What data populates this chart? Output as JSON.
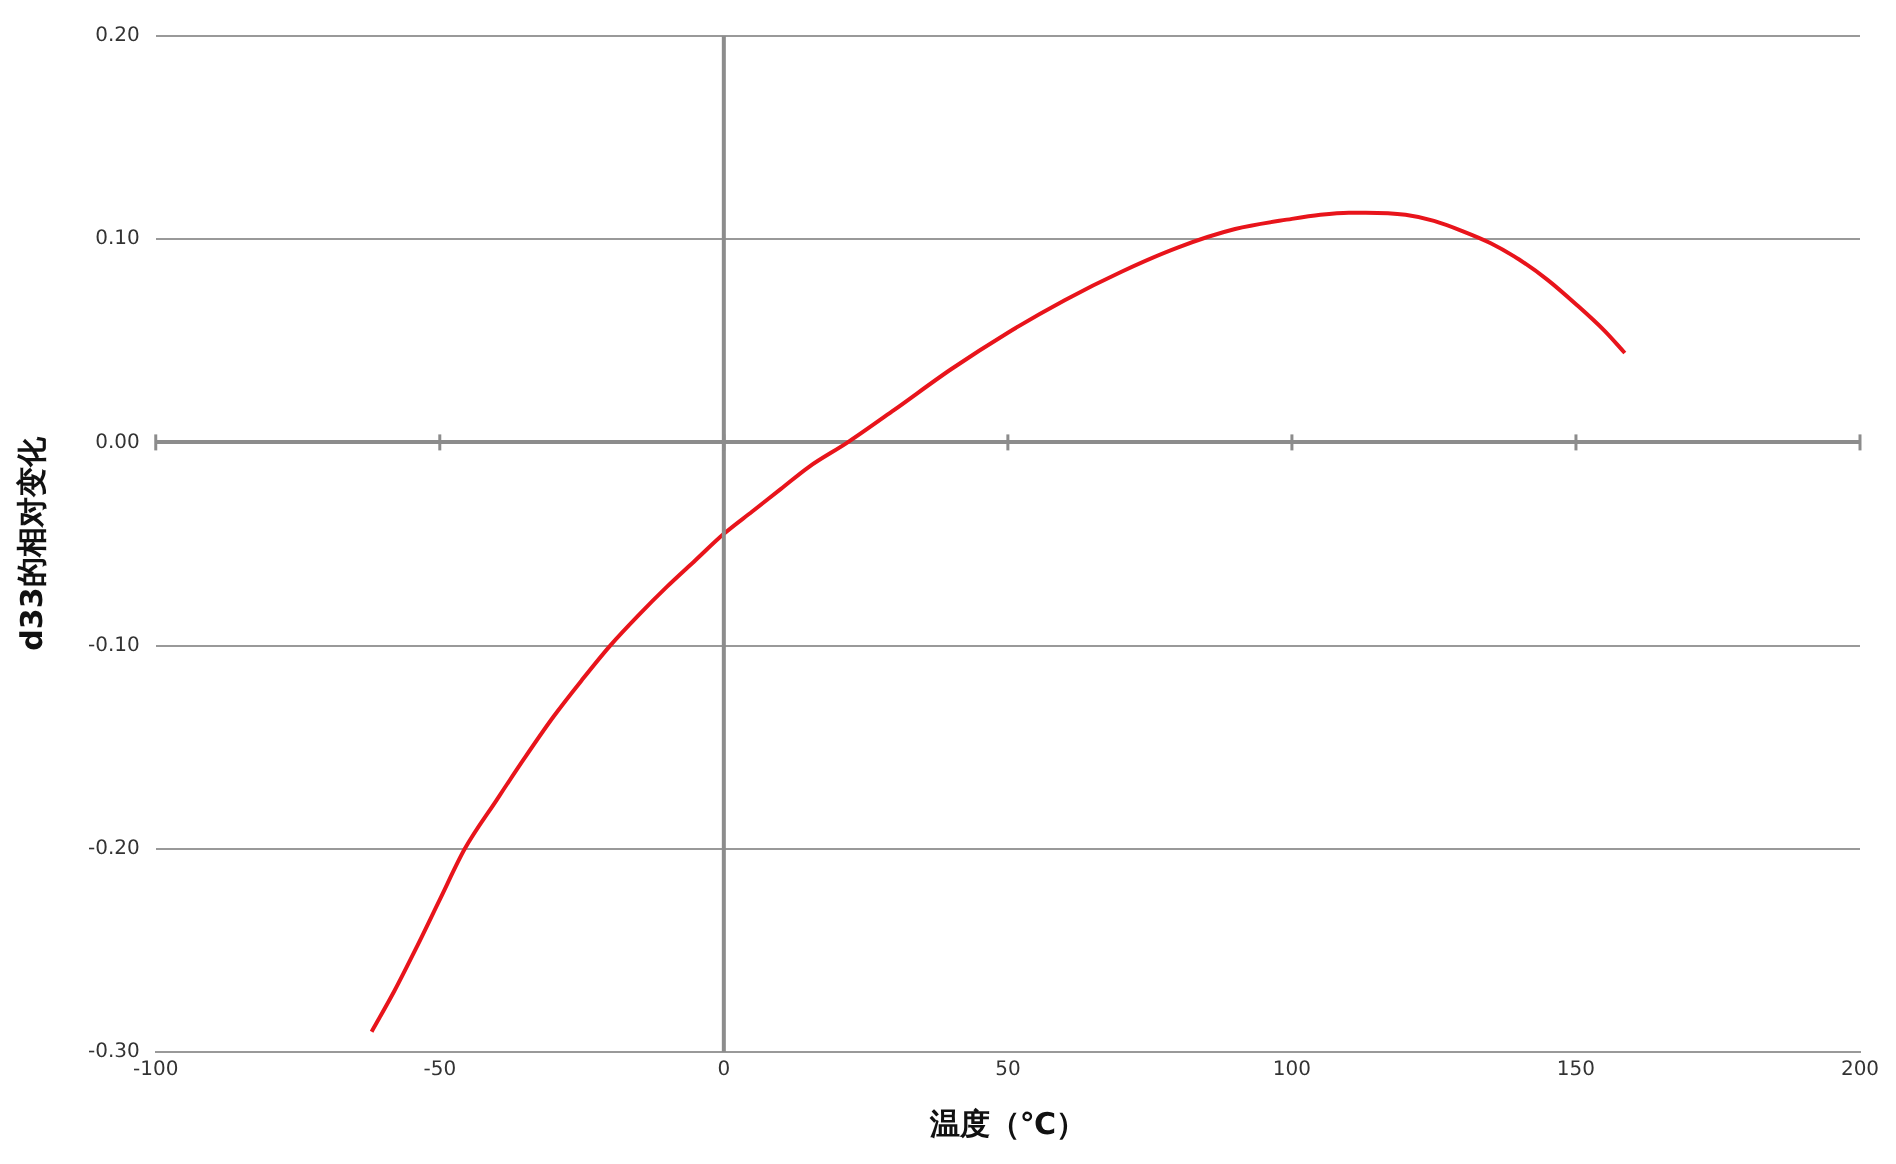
{
  "chart_data": {
    "type": "line",
    "xlabel": "温度（℃）",
    "ylabel": "d33的相对变化",
    "series": [
      {
        "color": "#e8141b",
        "x": [
          -62,
          -58,
          -54,
          -50,
          -45.6,
          -40,
          -35,
          -30,
          -25,
          -20,
          -15,
          -10,
          -5,
          0,
          5,
          10,
          15,
          21.8,
          30,
          40,
          50,
          60,
          70,
          80,
          90,
          100,
          105,
          110,
          113,
          120,
          125,
          130,
          135,
          140,
          145,
          150,
          155,
          158.6
        ],
        "values": [
          -0.29,
          -0.27,
          -0.248,
          -0.225,
          -0.2,
          -0.176,
          -0.155,
          -0.135,
          -0.117,
          -0.1,
          -0.085,
          -0.071,
          -0.058,
          -0.045,
          -0.034,
          -0.023,
          -0.012,
          0,
          0.016,
          0.036,
          0.054,
          0.07,
          0.084,
          0.096,
          0.105,
          0.11,
          0.112,
          0.113,
          0.113,
          0.112,
          0.109,
          0.104,
          0.098,
          0.09,
          0.08,
          0.068,
          0.055,
          0.044
        ]
      }
    ],
    "xlim": [
      -100,
      200
    ],
    "xticks": [
      -100,
      -50,
      0,
      50,
      100,
      150,
      200
    ],
    "ylim": [
      -0.3,
      0.2
    ],
    "yticks": [
      {
        "value": -0.3,
        "label": "-0.30"
      },
      {
        "value": -0.2,
        "label": "-0.20"
      },
      {
        "value": -0.1,
        "label": "-0.10"
      },
      {
        "value": 0,
        "label": "0.00"
      },
      {
        "value": 0.1,
        "label": "0.10"
      },
      {
        "value": 0.2,
        "label": "0.20"
      }
    ],
    "grid": "y",
    "ref_lines": [
      {
        "axis": "x",
        "value": 0,
        "color": "#8c8c8c"
      }
    ],
    "legend": false,
    "marker": "none",
    "line_style": "solid"
  }
}
